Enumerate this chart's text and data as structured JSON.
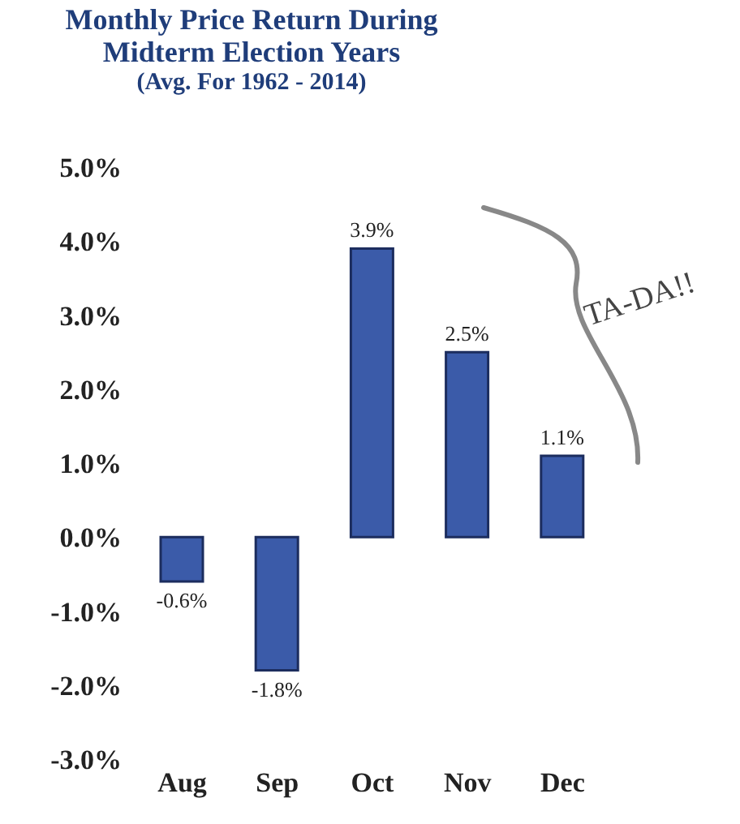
{
  "chart_data": {
    "type": "bar",
    "title": "Monthly Price Return During Midterm Election Years",
    "subtitle": "(Avg. For 1962 - 2014)",
    "categories": [
      "Aug",
      "Sep",
      "Oct",
      "Nov",
      "Dec"
    ],
    "values": [
      -0.6,
      -1.8,
      3.9,
      2.5,
      1.1
    ],
    "value_labels": [
      "-0.6%",
      "-1.8%",
      "3.9%",
      "2.5%",
      "1.1%"
    ],
    "color": "#3b5ba9",
    "ylim": [
      -3,
      5
    ],
    "yticks": [
      {
        "value": -3,
        "label": "-3.0%"
      },
      {
        "value": -2,
        "label": "-2.0%"
      },
      {
        "value": -1,
        "label": "-1.0%"
      },
      {
        "value": 0,
        "label": "0.0%"
      },
      {
        "value": 1,
        "label": "1.0%"
      },
      {
        "value": 2,
        "label": "2.0%"
      },
      {
        "value": 3,
        "label": "3.0%"
      },
      {
        "value": 4,
        "label": "4.0%"
      },
      {
        "value": 5,
        "label": "5.0%"
      }
    ],
    "grid": false,
    "annotations": [
      "TA-DA!!"
    ]
  }
}
